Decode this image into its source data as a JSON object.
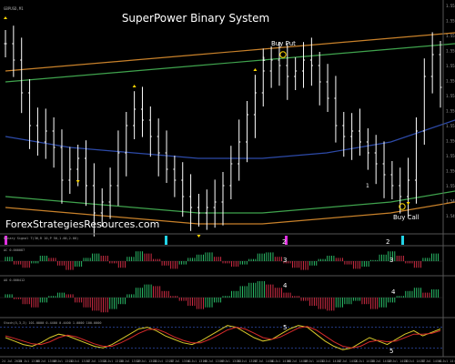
{
  "chart": {
    "title": "SuperPower Binary System",
    "symbol_label": "GBPUSD,M1",
    "watermark": "ForexStrategiesResources.com",
    "colors": {
      "background": "#000000",
      "bars": "#ffffff",
      "band_outer": "#c8812a",
      "band_inner": "#3fa34d",
      "band_mid": "#2d4aa8",
      "arrow": "#ffd700",
      "ac_up": "#2ecc71",
      "ac_down": "#e0304a",
      "signal_cyan": "#22d3e6",
      "signal_magenta": "#e030e0",
      "stoch_main": "#d9c82a",
      "stoch_signal": "#d62a2a",
      "stoch_levels": "#2d4aa8"
    }
  },
  "annotations": {
    "buy_put": "Buy Put",
    "buy_call": "Buy Call",
    "wave_1_top": "1",
    "wave_1_bottom": "1",
    "signal_1": "2",
    "signal_2": "2",
    "ac_3a": "3",
    "ac_3b": "3",
    "ao_4a": "4",
    "ao_4b": "4",
    "sto_5a": "5",
    "sto_5b": "5"
  },
  "panels": {
    "signal": {
      "label": "Binary Signal T(36,R 10,P 50,1.00,2.00)"
    },
    "ac": {
      "label": "AC 0.000087"
    },
    "ao": {
      "label": "AO 0.000412"
    },
    "stochastic": {
      "label": "Stoch(5,3,3) 101.0000 0.4400 0.4400 1.0000 100.0000"
    }
  },
  "chart_data": [
    {
      "type": "candlestick",
      "description_panel": "main",
      "price_scale_labels": [
        "1.55300",
        "1.55275",
        "1.55250",
        "1.55225",
        "1.55200",
        "1.55175",
        "1.55150",
        "1.55125",
        "1.55100",
        "1.55075",
        "1.55050",
        "1.55025",
        "1.55000",
        "1.54975",
        "1.54950"
      ],
      "ylim": [
        1.5495,
        1.553
      ],
      "close": [
        1.5527,
        1.5524,
        1.5518,
        1.5512,
        1.5509,
        1.5511,
        1.5508,
        1.5502,
        1.5504,
        1.5506,
        1.5501,
        1.5496,
        1.5498,
        1.5501,
        1.5507,
        1.5512,
        1.5515,
        1.5513,
        1.551,
        1.5507,
        1.5504,
        1.5502,
        1.5499,
        1.5497,
        1.5496,
        1.5497,
        1.5498,
        1.5501,
        1.5505,
        1.5509,
        1.5514,
        1.5518,
        1.5522,
        1.5524,
        1.5523,
        1.5521,
        1.5522,
        1.5524,
        1.5523,
        1.552,
        1.5517,
        1.5512,
        1.551,
        1.5511,
        1.5509,
        1.5507,
        1.5505,
        1.5503,
        1.5501,
        1.5499,
        1.5502,
        1.5511,
        1.5521,
        1.5525,
        1.5519
      ],
      "band_outer_upper": [
        1.5522,
        1.5523,
        1.5524,
        1.5525,
        1.5526,
        1.5527,
        1.5528,
        1.5529
      ],
      "band_outer_lower": [
        1.5497,
        1.5496,
        1.5495,
        1.5494,
        1.5494,
        1.5495,
        1.5496,
        1.5498
      ],
      "band_mid": [
        1.551,
        1.5508,
        1.5507,
        1.5506,
        1.5506,
        1.5507,
        1.5509,
        1.5513
      ]
    },
    {
      "type": "bar",
      "description_panel": "AC histogram",
      "values": [
        0.4,
        -0.3,
        -0.6,
        -0.2,
        0.5,
        0.3,
        -0.4,
        -0.8,
        -0.5,
        0.3,
        0.7,
        0.5,
        -0.2,
        -0.6,
        0.4,
        0.9,
        0.7,
        0.2,
        -0.4,
        -0.7,
        -0.3,
        0.3,
        0.6,
        0.8,
        0.4,
        -0.2,
        -0.5,
        -0.3,
        0.2,
        0.7,
        0.8,
        0.4,
        -0.2,
        -0.6,
        -0.8,
        -0.4,
        0.2,
        0.5,
        0.3,
        -0.3,
        -0.7,
        -0.5,
        0.1,
        0.6,
        0.9,
        0.5,
        -0.2,
        -0.6,
        0.3,
        0.7
      ]
    },
    {
      "type": "bar",
      "description_panel": "AO histogram",
      "values": [
        0.2,
        -0.1,
        -0.4,
        -0.6,
        -0.3,
        0.1,
        0.3,
        0.2,
        -0.3,
        -0.6,
        -0.8,
        -0.9,
        -0.7,
        -0.4,
        0.2,
        0.6,
        0.8,
        0.7,
        0.4,
        0.1,
        -0.2,
        -0.5,
        -0.7,
        -0.6,
        -0.3,
        0.1,
        0.4,
        0.7,
        0.9,
        1.0,
        0.8,
        0.6,
        0.3,
        0.1,
        -0.2,
        -0.5,
        -0.7,
        -0.8,
        -0.6,
        -0.4,
        -0.2,
        -0.4,
        -0.7,
        -0.6,
        -0.3,
        0.1,
        0.4,
        0.6,
        0.3,
        0.5
      ]
    },
    {
      "type": "line",
      "description_panel": "Stochastic",
      "ylim": [
        0,
        100
      ],
      "levels": [
        20,
        80
      ],
      "series": [
        {
          "values": [
            50,
            40,
            30,
            25,
            35,
            50,
            60,
            55,
            45,
            35,
            25,
            20,
            30,
            45,
            60,
            75,
            80,
            70,
            55,
            45,
            35,
            30,
            40,
            55,
            70,
            85,
            80,
            65,
            50,
            40,
            45,
            60,
            75,
            85,
            80,
            60,
            40,
            25,
            15,
            20,
            35,
            50,
            40,
            30,
            45,
            60,
            70,
            55,
            65,
            75
          ]
        },
        {
          "values": [
            55,
            48,
            40,
            32,
            30,
            38,
            50,
            57,
            52,
            42,
            32,
            25,
            25,
            35,
            48,
            62,
            73,
            75,
            65,
            52,
            42,
            35,
            35,
            45,
            58,
            72,
            80,
            75,
            63,
            50,
            45,
            52,
            65,
            78,
            82,
            72,
            55,
            38,
            25,
            20,
            25,
            38,
            42,
            38,
            40,
            50,
            60,
            60,
            62,
            70
          ]
        }
      ]
    }
  ],
  "time_axis_labels": [
    "24 Jul 2015",
    "24 Jul 13:05",
    "24 Jul 13:09",
    "24 Jul 13:13",
    "24 Jul 13:17",
    "24 Jul 13:21",
    "24 Jul 13:25",
    "24 Jul 13:29",
    "24 Jul 13:33",
    "24 Jul 13:37",
    "24 Jul 13:41",
    "24 Jul 13:45",
    "24 Jul 13:49",
    "24 Jul 13:53",
    "24 Jul 13:57",
    "24 Jul 14:01",
    "24 Jul 14:05",
    "24 Jul 14:09",
    "24 Jul 14:13",
    "24 Jul 14:17",
    "24 Jul 14:21",
    "24 Jul 14:25",
    "24 Jul 14:29",
    "24 Jul 14:33",
    "24 Jul 14:37",
    "24 Jul 14:41",
    "24 Jul 14:45"
  ]
}
